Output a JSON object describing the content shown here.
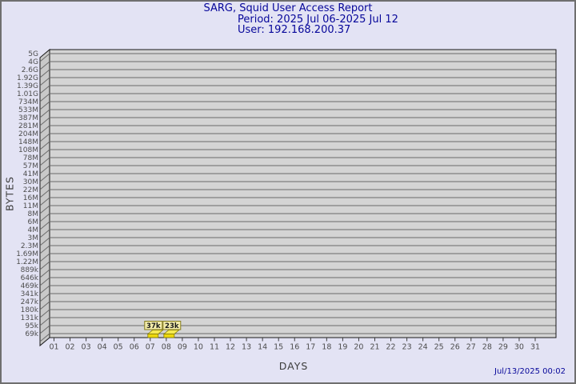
{
  "header": {
    "title": "SARG, Squid User Access Report",
    "period": "Period: 2025 Jul 06-2025 Jul 12",
    "user": "User: 192.168.200.37"
  },
  "footer": {
    "generated": "Jul/13/2025 00:02"
  },
  "chart_data": {
    "type": "bar",
    "title": "SARG, Squid User Access Report",
    "subtitle": [
      "Period: 2025 Jul 06-2025 Jul 12",
      "User: 192.168.200.37"
    ],
    "xlabel": "DAYS",
    "ylabel": "BYTES",
    "axis_scale": "logarithmic",
    "grid": true,
    "ylim": [
      "69k",
      "5G"
    ],
    "x": [
      "01",
      "02",
      "03",
      "04",
      "05",
      "06",
      "07",
      "08",
      "09",
      "10",
      "11",
      "12",
      "13",
      "14",
      "15",
      "16",
      "17",
      "18",
      "19",
      "20",
      "21",
      "22",
      "23",
      "24",
      "25",
      "26",
      "27",
      "28",
      "29",
      "30",
      "31"
    ],
    "y_axis_ticks_top_to_bottom": [
      "5G",
      "4G",
      "2.6G",
      "1.92G",
      "1.39G",
      "1.01G",
      "734M",
      "533M",
      "387M",
      "281M",
      "204M",
      "148M",
      "108M",
      "78M",
      "57M",
      "41M",
      "30M",
      "22M",
      "16M",
      "11M",
      "8M",
      "6M",
      "4M",
      "3M",
      "2.3M",
      "1.69M",
      "1.22M",
      "889k",
      "646k",
      "469k",
      "341k",
      "247k",
      "180k",
      "131k",
      "95k",
      "69k"
    ],
    "points": [
      {
        "x": "07",
        "label": "37k",
        "value_bytes": 37000
      },
      {
        "x": "08",
        "label": "23k",
        "value_bytes": 23000
      }
    ],
    "colors": {
      "page_bg": "#e3e3f4",
      "plot_bg": "#d4d4d4",
      "wall": "#c9c9c9",
      "gridline": "#6a6a6a",
      "plot_border": "#1a1a1a",
      "tick_text": "#4d4d4d",
      "title_text": "#06069a",
      "bar_front": "#eed90c",
      "bar_top": "#f6ea52",
      "bar_outline": "#7d7400",
      "value_box_bg": "#f3ecaa",
      "value_box_border": "#857c1e",
      "value_box_text": "#1c1c1c"
    }
  }
}
